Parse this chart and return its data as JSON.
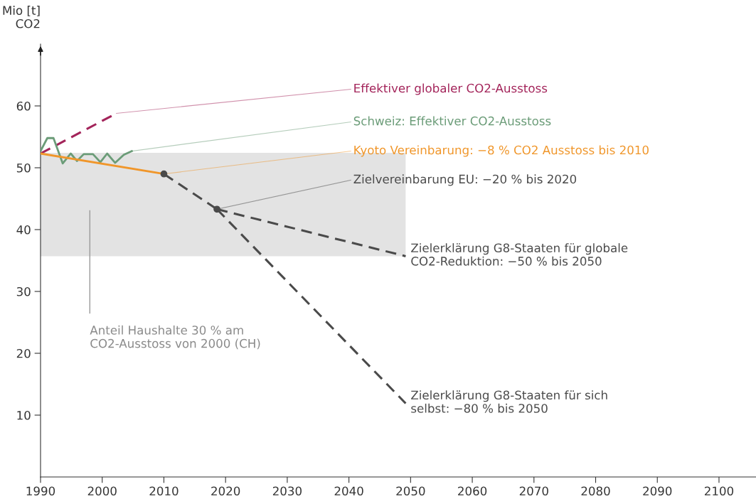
{
  "chart_data": {
    "type": "line",
    "ylabel": "Mio [t]\nCO2",
    "xlim": [
      1990,
      2106
    ],
    "xticks": [
      1990,
      2000,
      2010,
      2020,
      2030,
      2040,
      2050,
      2060,
      2070,
      2080,
      2090,
      2100
    ],
    "ylim": [
      0,
      70
    ],
    "yticks": [
      10,
      20,
      30,
      40,
      50,
      60
    ],
    "grid": false,
    "legend": false,
    "bands": [
      {
        "axis": "y",
        "from": 35.7,
        "to": 52.4,
        "color": "#e3e3e3",
        "label": "Anteil Haushalte 30 % am\nCO2-Ausstoss von 2000 (CH)"
      }
    ],
    "series": [
      {
        "name": "Effektiver globaler CO2-Ausstoss",
        "color": "#a3245a",
        "line_style": "dashed",
        "x": [
          1990,
          2002.3
        ],
        "values": [
          52.3,
          58.8
        ]
      },
      {
        "name": "Schweiz: Effektiver CO2-Ausstoss",
        "color": "#6b9c78",
        "line_style": "solid",
        "x": [
          1990,
          1991.1,
          1992.1,
          1993.6,
          1994.9,
          1995.9,
          1997,
          1998.5,
          1999.7,
          2000.8,
          2002.1,
          2003.5,
          2004.8
        ],
        "values": [
          52.7,
          54.8,
          54.8,
          50.7,
          52.3,
          51.1,
          52.2,
          52.2,
          50.9,
          52.3,
          50.8,
          52.1,
          52.7
        ]
      },
      {
        "name": "Kyoto Vereinbarung: −8 % CO2 Ausstoss bis 2010",
        "color": "#f0962a",
        "line_style": "solid",
        "x": [
          1990,
          2010
        ],
        "values": [
          52.3,
          49.0
        ]
      },
      {
        "name": "Zielvereinbarung EU: −20 % bis 2020",
        "color": "#4a4a4a",
        "line_style": "dashed",
        "marker": "circle",
        "x": [
          2010,
          2018.6
        ],
        "values": [
          49.0,
          43.3
        ]
      },
      {
        "name": "Zielerklärung G8-Staaten für globale\nCO2-Reduktion: −50 % bis 2050",
        "color": "#4a4a4a",
        "line_style": "dashed",
        "x": [
          2018.6,
          2049.2
        ],
        "values": [
          43.3,
          35.7
        ]
      },
      {
        "name": "Zielerklärung G8-Staaten für sich\nselbst: −80 % bis 2050",
        "color": "#4a4a4a",
        "line_style": "dashed",
        "x": [
          2018.6,
          2049.2
        ],
        "values": [
          43.3,
          11.9
        ]
      }
    ]
  }
}
